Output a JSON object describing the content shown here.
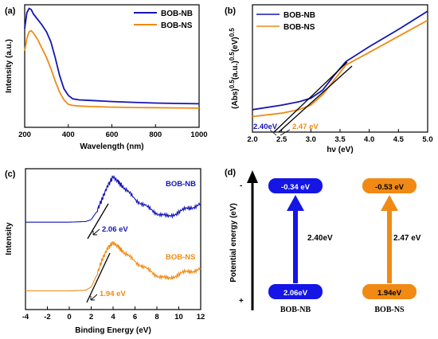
{
  "chart_data": [
    {
      "panel": "(a)",
      "type": "line",
      "xlabel": "Wavelength (nm)",
      "ylabel": "Intensity (a.u.)",
      "xlim": [
        200,
        1000
      ],
      "xticks": [
        "200",
        "400",
        "600",
        "800",
        "1000"
      ],
      "ylim": [
        0,
        1
      ],
      "legend_position": "top-right",
      "series": [
        {
          "name": "BOB-NB",
          "color": "#1515b5",
          "x": [
            200,
            210,
            220,
            230,
            240,
            260,
            280,
            300,
            320,
            340,
            360,
            380,
            400,
            420,
            450,
            500,
            600,
            700,
            800,
            900,
            1000
          ],
          "y": [
            0.82,
            0.96,
            1.0,
            0.99,
            0.95,
            0.9,
            0.85,
            0.79,
            0.7,
            0.56,
            0.4,
            0.28,
            0.22,
            0.19,
            0.18,
            0.175,
            0.165,
            0.158,
            0.152,
            0.148,
            0.145
          ]
        },
        {
          "name": "BOB-NS",
          "color": "#f08a14",
          "x": [
            200,
            210,
            220,
            230,
            240,
            260,
            280,
            300,
            320,
            340,
            360,
            380,
            400,
            420,
            450,
            500,
            600,
            700,
            800,
            900,
            1000
          ],
          "y": [
            0.62,
            0.73,
            0.79,
            0.8,
            0.78,
            0.72,
            0.64,
            0.56,
            0.46,
            0.35,
            0.25,
            0.18,
            0.14,
            0.13,
            0.125,
            0.12,
            0.115,
            0.112,
            0.11,
            0.108,
            0.106
          ]
        }
      ]
    },
    {
      "panel": "(b)",
      "type": "line",
      "xlabel": "hν (eV)",
      "ylabel_parts": {
        "base": "(Abs)",
        "sup1": "0.5",
        "mid": "(a.u.)",
        "sup2": "0.5",
        "end": "(eV)",
        "sup3": "0.5"
      },
      "xlim": [
        2.0,
        5.0
      ],
      "xticks": [
        "2.0",
        "2.5",
        "3.0",
        "3.5",
        "4.0",
        "4.5",
        "5.0"
      ],
      "ylim": [
        0,
        1
      ],
      "legend_position": "top-left",
      "series": [
        {
          "name": "BOB-NB",
          "color": "#1515b5",
          "x": [
            2.0,
            2.5,
            2.8,
            3.0,
            3.2,
            3.4,
            3.6,
            4.0,
            4.5,
            5.0
          ],
          "y": [
            0.14,
            0.18,
            0.21,
            0.24,
            0.31,
            0.44,
            0.56,
            0.69,
            0.84,
            1.0
          ]
        },
        {
          "name": "BOB-NS",
          "color": "#f08a14",
          "x": [
            2.0,
            2.5,
            2.8,
            3.0,
            3.2,
            3.4,
            3.6,
            4.0,
            4.5,
            5.0
          ],
          "y": [
            0.08,
            0.11,
            0.14,
            0.18,
            0.27,
            0.4,
            0.53,
            0.64,
            0.78,
            0.92
          ]
        }
      ],
      "annotations": [
        {
          "text": "2.40eV",
          "color": "#1515b5",
          "x": 2.4
        },
        {
          "text": "2.47 eV",
          "color": "#f08a14",
          "x": 2.47
        }
      ]
    },
    {
      "panel": "(c)",
      "type": "line",
      "xlabel": "Binding Energy (eV)",
      "ylabel": "Intensity",
      "xlim": [
        -4,
        12
      ],
      "xticks": [
        "-4",
        "-2",
        "0",
        "2",
        "4",
        "6",
        "8",
        "10",
        "12"
      ],
      "ylim": [
        0,
        1
      ],
      "series": [
        {
          "name": "BOB-NB",
          "color": "#1515b5",
          "x": [
            -4,
            0,
            1.5,
            2.0,
            2.5,
            3.0,
            3.5,
            4.0,
            4.5,
            5.0,
            6.0,
            7.0,
            8.0,
            9.0,
            10.0,
            11.0,
            12.0
          ],
          "y": [
            0.62,
            0.62,
            0.625,
            0.64,
            0.7,
            0.8,
            0.9,
            0.97,
            0.93,
            0.88,
            0.8,
            0.74,
            0.69,
            0.66,
            0.7,
            0.73,
            0.76
          ]
        },
        {
          "name": "BOB-NS",
          "color": "#f08a14",
          "x": [
            -4,
            0,
            1.5,
            2.0,
            2.5,
            3.0,
            3.5,
            4.0,
            4.5,
            5.0,
            6.0,
            7.0,
            8.0,
            9.0,
            10.0,
            11.0,
            12.0
          ],
          "y": [
            0.09,
            0.09,
            0.095,
            0.12,
            0.21,
            0.33,
            0.42,
            0.46,
            0.43,
            0.38,
            0.32,
            0.26,
            0.21,
            0.18,
            0.22,
            0.24,
            0.26
          ]
        }
      ],
      "annotations": [
        {
          "text": "2.06 eV",
          "color": "#1515b5",
          "x": 2.06
        },
        {
          "text": "1.94 eV",
          "color": "#f08a14",
          "x": 1.94
        }
      ]
    },
    {
      "panel": "(d)",
      "type": "diagram",
      "ylabel": "Potential energy (eV)",
      "axis_minus": "-",
      "axis_plus": "+",
      "columns": [
        {
          "name": "BOB-NB",
          "color": "#1515e6",
          "cb": "-0.34 eV",
          "vb": "2.06eV",
          "gap": "2.40eV"
        },
        {
          "name": "BOB-NS",
          "color": "#f08a14",
          "cb": "-0.53 eV",
          "vb": "1.94eV",
          "gap": "2.47 eV"
        }
      ]
    }
  ]
}
